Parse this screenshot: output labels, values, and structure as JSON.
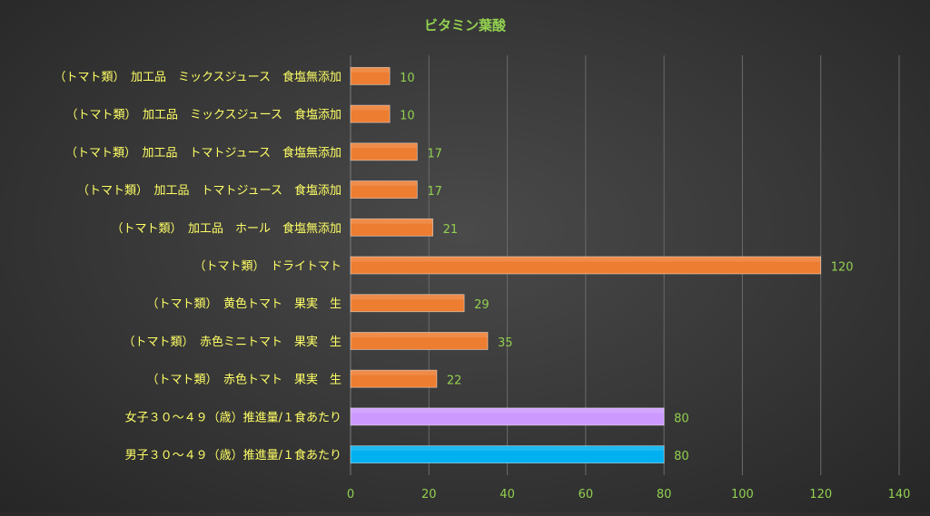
{
  "chart_data": {
    "type": "bar",
    "orientation": "horizontal",
    "title": "ビタミン葉酸",
    "categories": [
      "（トマト類）　加工品　ミックスジュース　食塩無添加",
      "（トマト類）　加工品　ミックスジュース　食塩添加",
      "（トマト類）　加工品　トマトジュース　食塩無添加",
      "（トマト類）　加工品　トマトジュース　食塩添加",
      "（トマト類）　加工品　ホール　食塩無添加",
      "（トマト類）　ドライトマト",
      "（トマト類）　黄色トマト　果実　生",
      "（トマト類）　赤色ミニトマト　果実　生",
      "（トマト類）　赤色トマト　果実　生",
      "女子３０～４９（歳）推進量/１食あたり",
      "男子３０～４９（歳）推進量/１食あたり"
    ],
    "values": [
      10,
      10,
      17,
      17,
      21,
      120,
      29,
      35,
      22,
      80,
      80
    ],
    "bar_colors": [
      "#ED7D31",
      "#ED7D31",
      "#ED7D31",
      "#ED7D31",
      "#ED7D31",
      "#ED7D31",
      "#ED7D31",
      "#ED7D31",
      "#ED7D31",
      "#CC99FF",
      "#00B0F0"
    ],
    "xlim": [
      0,
      140
    ],
    "xticks": [
      0,
      20,
      40,
      60,
      80,
      100,
      120,
      140
    ],
    "grid": true,
    "legend": "none",
    "colors": {
      "title": "#92D050",
      "category_labels": "#FFFF66",
      "tick_labels": "#92D050",
      "data_labels": "#92D050",
      "gridlines": "#6a6a6a"
    }
  }
}
